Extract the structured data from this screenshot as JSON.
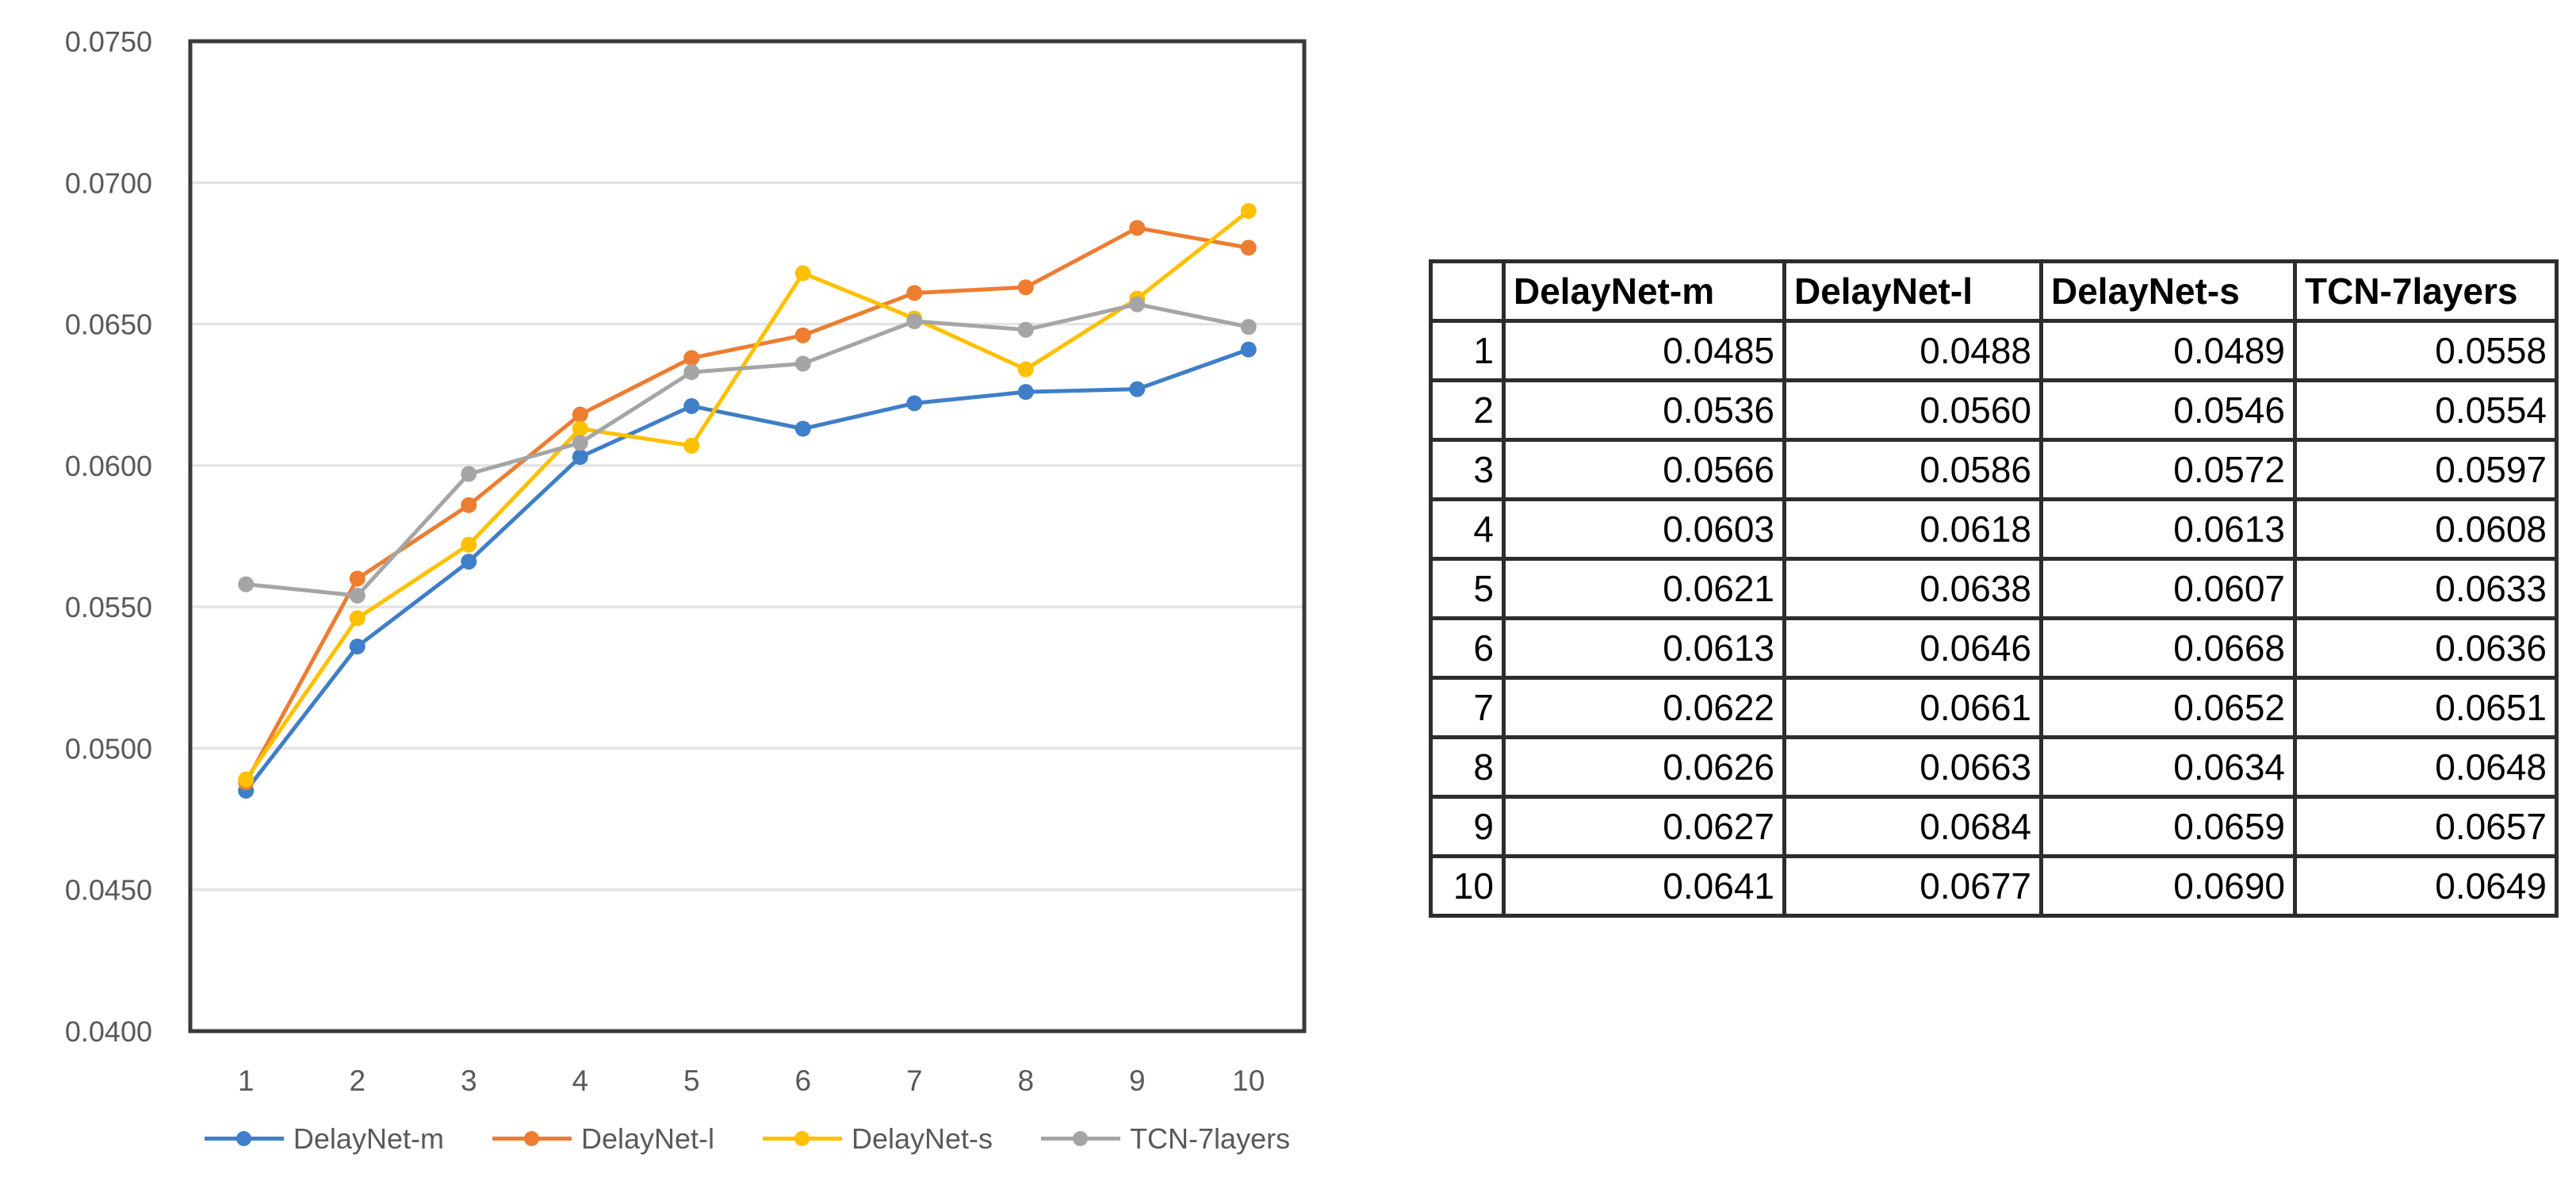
{
  "chart_data": {
    "type": "line",
    "title": "",
    "xlabel": "",
    "ylabel": "",
    "x": [
      "1",
      "2",
      "3",
      "4",
      "5",
      "6",
      "7",
      "8",
      "9",
      "10"
    ],
    "series": [
      {
        "name": "DelayNet-m",
        "color": "#3F7EC8",
        "values": [
          0.0485,
          0.0536,
          0.0566,
          0.0603,
          0.0621,
          0.0613,
          0.0622,
          0.0626,
          0.0627,
          0.0641
        ]
      },
      {
        "name": "DelayNet-l",
        "color": "#ED7D31",
        "values": [
          0.0488,
          0.056,
          0.0586,
          0.0618,
          0.0638,
          0.0646,
          0.0661,
          0.0663,
          0.0684,
          0.0677
        ]
      },
      {
        "name": "DelayNet-s",
        "color": "#FFC000",
        "values": [
          0.0489,
          0.0546,
          0.0572,
          0.0613,
          0.0607,
          0.0668,
          0.0652,
          0.0634,
          0.0659,
          0.069
        ]
      },
      {
        "name": "TCN-7layers",
        "color": "#A5A5A5",
        "values": [
          0.0558,
          0.0554,
          0.0597,
          0.0608,
          0.0633,
          0.0636,
          0.0651,
          0.0648,
          0.0657,
          0.0649
        ]
      }
    ],
    "ylim": [
      0.04,
      0.075
    ],
    "ytick_step": 0.005,
    "ytick_decimals": 4,
    "grid": true,
    "legend_position": "bottom",
    "marker": "circle",
    "axis_text_color": "#595959",
    "gridline_color": "#E4E4E4",
    "frame_color": "#3A3A3A"
  },
  "table": {
    "headers": [
      "",
      "DelayNet-m",
      "DelayNet-l",
      "DelayNet-s",
      "TCN-7layers"
    ],
    "rows": [
      {
        "label": "1",
        "values": [
          "0.0485",
          "0.0488",
          "0.0489",
          "0.0558"
        ]
      },
      {
        "label": "2",
        "values": [
          "0.0536",
          "0.0560",
          "0.0546",
          "0.0554"
        ]
      },
      {
        "label": "3",
        "values": [
          "0.0566",
          "0.0586",
          "0.0572",
          "0.0597"
        ]
      },
      {
        "label": "4",
        "values": [
          "0.0603",
          "0.0618",
          "0.0613",
          "0.0608"
        ]
      },
      {
        "label": "5",
        "values": [
          "0.0621",
          "0.0638",
          "0.0607",
          "0.0633"
        ]
      },
      {
        "label": "6",
        "values": [
          "0.0613",
          "0.0646",
          "0.0668",
          "0.0636"
        ]
      },
      {
        "label": "7",
        "values": [
          "0.0622",
          "0.0661",
          "0.0652",
          "0.0651"
        ]
      },
      {
        "label": "8",
        "values": [
          "0.0626",
          "0.0663",
          "0.0634",
          "0.0648"
        ]
      },
      {
        "label": "9",
        "values": [
          "0.0627",
          "0.0684",
          "0.0659",
          "0.0657"
        ]
      },
      {
        "label": "10",
        "values": [
          "0.0641",
          "0.0677",
          "0.0690",
          "0.0649"
        ]
      }
    ]
  }
}
